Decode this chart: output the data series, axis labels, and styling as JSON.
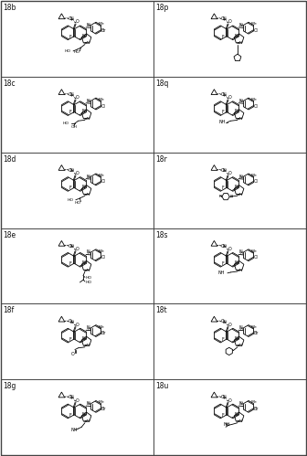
{
  "fig_width": 3.36,
  "fig_height": 4.99,
  "dpi": 100,
  "bg_color": "#f0ede8",
  "border_color": "#444444",
  "text_color": "#111111",
  "labels_left": [
    "18b",
    "18c",
    "18d",
    "18e",
    "18f",
    "18g"
  ],
  "labels_right": [
    "18p",
    "18q",
    "18r",
    "18s",
    "18t",
    "18u"
  ],
  "halogen_left": [
    "Br",
    "Cl",
    "Cl",
    "Cl",
    "Br",
    "Br"
  ],
  "halogen_right": [
    "Cl",
    "Cl",
    "Cl",
    "Cl",
    "Br",
    "Br"
  ],
  "n_substituent_left": [
    "diol2",
    "diol3",
    "diol3b",
    "diol4",
    "ald",
    "aminoisopropyl"
  ],
  "n_substituent_right": [
    "pyrrolidine_chain",
    "nhme",
    "piperidine_morph",
    "nh2chain",
    "piperidine",
    "nhisopropyl"
  ]
}
